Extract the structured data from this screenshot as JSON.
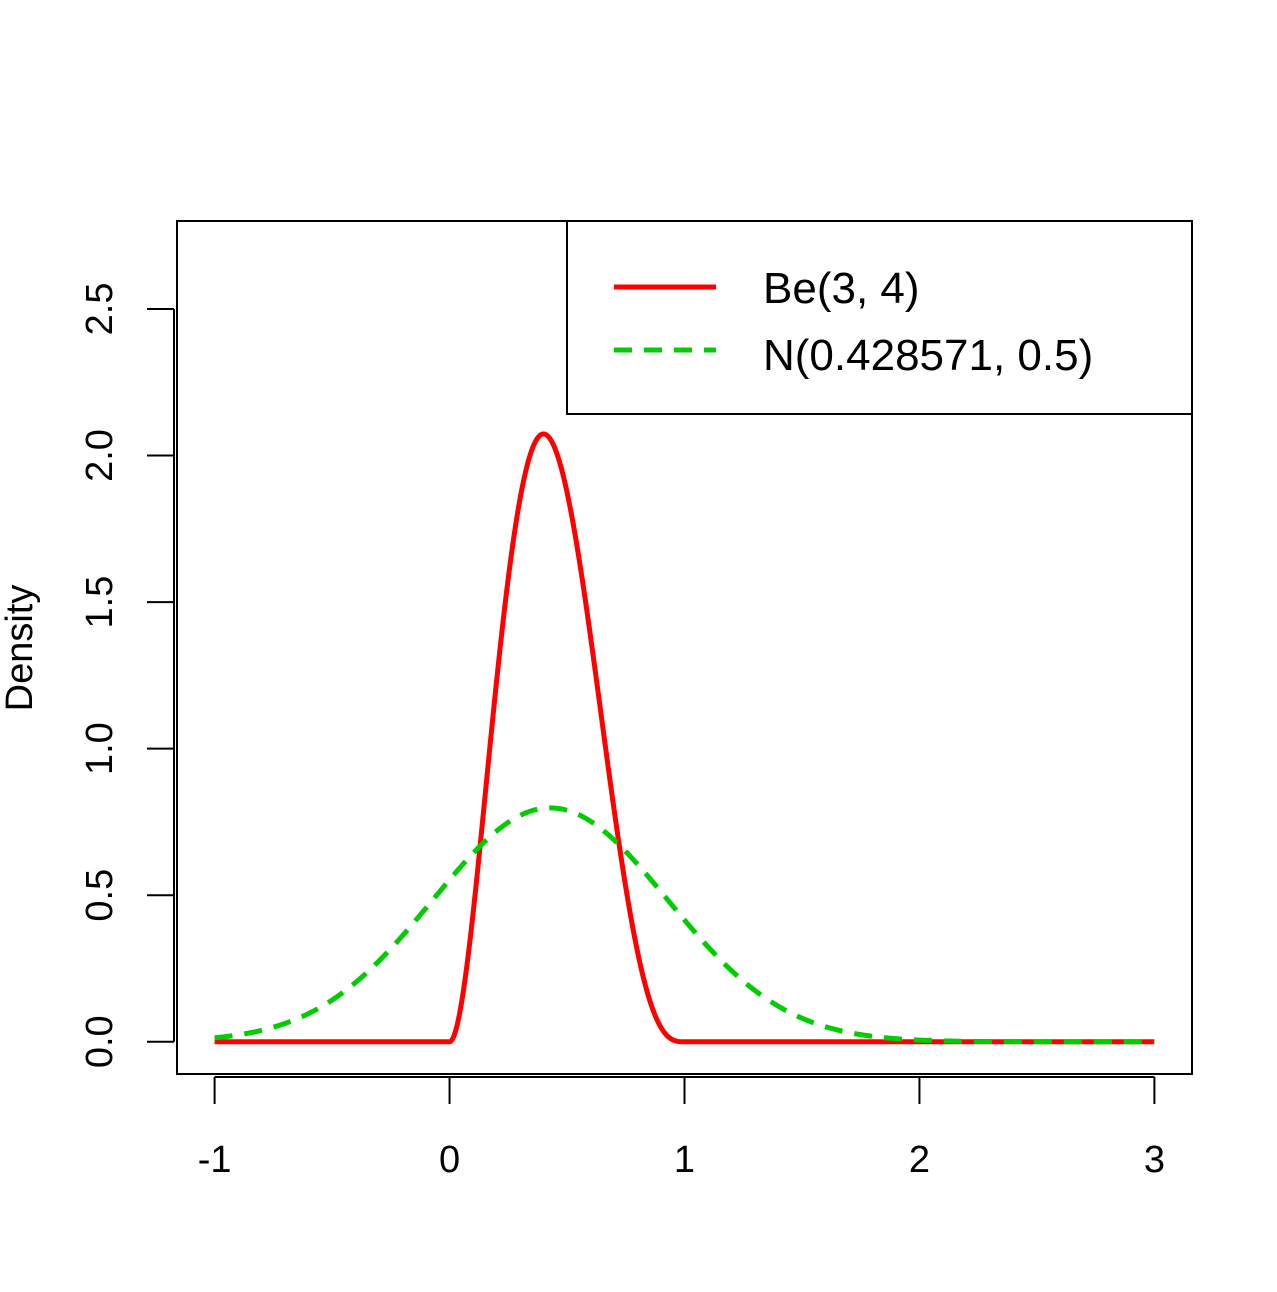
{
  "chart_data": {
    "type": "line",
    "title": "",
    "xlabel": "",
    "ylabel": "Density",
    "xlim": [
      -1.16,
      3.16
    ],
    "ylim": [
      -0.11,
      2.8
    ],
    "x_ticks": [
      "-1",
      "0",
      "1",
      "2",
      "3"
    ],
    "y_ticks": [
      "0.0",
      "0.5",
      "1.0",
      "1.5",
      "2.0",
      "2.5"
    ],
    "grid": false,
    "legend_position": "top-right",
    "series": [
      {
        "name": "Be(3, 4)",
        "color": "#ff0000",
        "style": "solid",
        "distribution": "beta",
        "alpha": 3,
        "beta": 4
      },
      {
        "name": "N(0.428571, 0.5)",
        "color": "#00cd00",
        "style": "dashed",
        "distribution": "normal",
        "mean": 0.428571,
        "sd": 0.5
      }
    ],
    "x_domain": [
      -1,
      3
    ]
  }
}
